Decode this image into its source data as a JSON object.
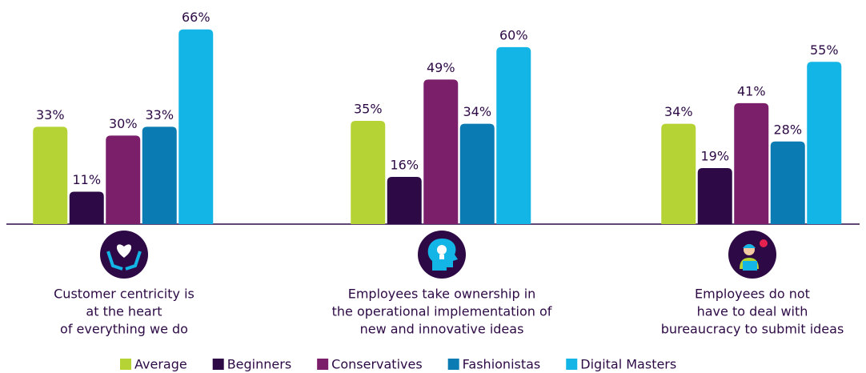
{
  "chart_data": {
    "type": "bar",
    "categories": [
      [
        "Customer centricity is",
        "at the heart",
        "of everything we do"
      ],
      [
        "Employees take ownership in",
        "the operational implementation of",
        "new and innovative ideas"
      ],
      [
        "Employees do not",
        "have to deal with",
        "bureaucracy to submit ideas"
      ]
    ],
    "series": [
      {
        "name": "Average",
        "color": "#b5d334",
        "values": [
          33,
          35,
          34
        ],
        "value_labels": [
          "33%",
          "35%",
          "34%"
        ]
      },
      {
        "name": "Beginners",
        "color": "#2d0a45",
        "values": [
          11,
          16,
          19
        ],
        "value_labels": [
          "11%",
          "16%",
          "19%"
        ]
      },
      {
        "name": "Conservatives",
        "color": "#7b1f6a",
        "values": [
          30,
          49,
          41
        ],
        "value_labels": [
          "30%",
          "49%",
          "41%"
        ]
      },
      {
        "name": "Fashionistas",
        "color": "#0b7bb4",
        "values": [
          33,
          34,
          28
        ],
        "value_labels": [
          "33%",
          "34%",
          "28%"
        ]
      },
      {
        "name": "Digital Masters",
        "color": "#12b5e5",
        "values": [
          66,
          60,
          55
        ],
        "value_labels": [
          "66%",
          "60%",
          "55%"
        ]
      }
    ],
    "ylim": [
      0,
      70
    ],
    "legend": "bottom"
  }
}
